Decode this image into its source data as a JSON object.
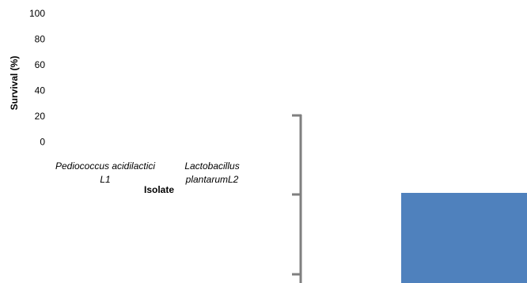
{
  "chart_data": {
    "type": "bar",
    "title": "",
    "xlabel": "Isolate",
    "ylabel": "Survival (%)",
    "ylim": [
      0,
      100
    ],
    "yticks": [
      "100",
      "80",
      "60",
      "40",
      "20",
      "0"
    ],
    "categories": [
      [
        "Pediococcus acidilactici",
        "L1"
      ],
      [
        "Lactobacillus",
        "plantarumL2"
      ]
    ],
    "values": [
      null,
      null
    ],
    "bar_color": "#4F81BD",
    "axis_color": "#7F7F7F",
    "grid": false,
    "legend": "none"
  }
}
